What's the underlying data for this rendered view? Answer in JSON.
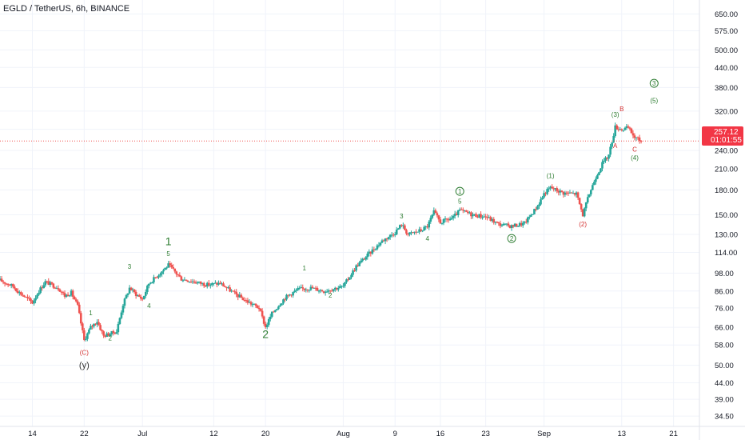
{
  "chart_data": {
    "type": "candlestick",
    "title": "EGLD / TetherUS, 6h, BINANCE",
    "y_scale": "log",
    "ylim": [
      32,
      720
    ],
    "y_ticks": [
      34.5,
      39,
      44,
      50,
      58,
      66,
      76,
      86,
      98,
      114,
      130,
      150,
      180,
      210,
      240,
      280,
      320,
      380,
      440,
      500,
      575,
      650
    ],
    "x_range": [
      "2021-06-09",
      "2021-09-25"
    ],
    "x_ticks": [
      {
        "label": "14",
        "date": "2021-06-14"
      },
      {
        "label": "22",
        "date": "2021-06-22"
      },
      {
        "label": "Jul",
        "date": "2021-07-01"
      },
      {
        "label": "12",
        "date": "2021-07-12"
      },
      {
        "label": "20",
        "date": "2021-07-20"
      },
      {
        "label": "Aug",
        "date": "2021-08-01"
      },
      {
        "label": "9",
        "date": "2021-08-09"
      },
      {
        "label": "16",
        "date": "2021-08-16"
      },
      {
        "label": "23",
        "date": "2021-08-23"
      },
      {
        "label": "Sep",
        "date": "2021-09-01"
      },
      {
        "label": "13",
        "date": "2021-09-13"
      },
      {
        "label": "21",
        "date": "2021-09-21"
      }
    ],
    "current_price": "257.12",
    "countdown": "01:01:55",
    "price_path": [
      [
        "2021-06-09",
        93
      ],
      [
        "2021-06-11",
        89
      ],
      [
        "2021-06-12",
        85
      ],
      [
        "2021-06-14",
        79
      ],
      [
        "2021-06-15",
        86
      ],
      [
        "2021-06-16",
        92
      ],
      [
        "2021-06-18",
        88
      ],
      [
        "2021-06-19",
        83
      ],
      [
        "2021-06-20",
        85
      ],
      [
        "2021-06-21",
        77
      ],
      [
        "2021-06-22",
        60
      ],
      [
        "2021-06-23",
        66
      ],
      [
        "2021-06-24",
        69
      ],
      [
        "2021-06-25",
        62
      ],
      [
        "2021-06-27",
        64
      ],
      [
        "2021-06-28",
        78
      ],
      [
        "2021-06-29",
        88
      ],
      [
        "2021-06-30",
        84
      ],
      [
        "2021-07-01",
        81
      ],
      [
        "2021-07-02",
        91
      ],
      [
        "2021-07-03",
        95
      ],
      [
        "2021-07-05",
        104
      ],
      [
        "2021-07-06",
        99
      ],
      [
        "2021-07-07",
        94
      ],
      [
        "2021-07-09",
        92
      ],
      [
        "2021-07-11",
        90
      ],
      [
        "2021-07-13",
        91
      ],
      [
        "2021-07-15",
        85
      ],
      [
        "2021-07-17",
        80
      ],
      [
        "2021-07-19",
        76
      ],
      [
        "2021-07-20",
        66
      ],
      [
        "2021-07-21",
        73
      ],
      [
        "2021-07-23",
        82
      ],
      [
        "2021-07-25",
        87
      ],
      [
        "2021-07-27",
        88
      ],
      [
        "2021-07-29",
        86
      ],
      [
        "2021-07-30",
        87
      ],
      [
        "2021-08-01",
        89
      ],
      [
        "2021-08-03",
        103
      ],
      [
        "2021-08-05",
        113
      ],
      [
        "2021-08-07",
        124
      ],
      [
        "2021-08-09",
        132
      ],
      [
        "2021-08-10",
        140
      ],
      [
        "2021-08-11",
        130
      ],
      [
        "2021-08-13",
        134
      ],
      [
        "2021-08-14",
        138
      ],
      [
        "2021-08-15",
        153
      ],
      [
        "2021-08-16",
        142
      ],
      [
        "2021-08-18",
        147
      ],
      [
        "2021-08-19",
        155
      ],
      [
        "2021-08-21",
        150
      ],
      [
        "2021-08-23",
        148
      ],
      [
        "2021-08-25",
        140
      ],
      [
        "2021-08-27",
        138
      ],
      [
        "2021-08-29",
        141
      ],
      [
        "2021-08-31",
        160
      ],
      [
        "2021-09-01",
        175
      ],
      [
        "2021-09-02",
        183
      ],
      [
        "2021-09-04",
        176
      ],
      [
        "2021-09-06",
        175
      ],
      [
        "2021-09-07",
        150
      ],
      [
        "2021-09-08",
        175
      ],
      [
        "2021-09-09",
        198
      ],
      [
        "2021-09-10",
        218
      ],
      [
        "2021-09-11",
        232
      ],
      [
        "2021-09-12",
        285
      ],
      [
        "2021-09-13",
        280
      ],
      [
        "2021-09-14",
        283
      ],
      [
        "2021-09-15",
        264
      ],
      [
        "2021-09-16",
        257
      ]
    ],
    "wave_labels": [
      {
        "text": "(C)",
        "date": "2021-06-22",
        "price": 54,
        "color": "#d32f2f"
      },
      {
        "text": "(y)",
        "date": "2021-06-22",
        "price": 49,
        "color": "#333333"
      },
      {
        "text": "1",
        "date": "2021-06-23",
        "price": 72,
        "color": "#2e7d32"
      },
      {
        "text": "2",
        "date": "2021-06-26",
        "price": 60,
        "color": "#2e7d32"
      },
      {
        "text": "3",
        "date": "2021-06-29",
        "price": 101,
        "color": "#2e7d32"
      },
      {
        "text": "4",
        "date": "2021-07-02",
        "price": 76,
        "color": "#2e7d32"
      },
      {
        "text": "1",
        "date": "2021-07-05",
        "price": 120,
        "color": "#2e7d32"
      },
      {
        "text": "5",
        "date": "2021-07-05",
        "price": 111,
        "color": "#2e7d32"
      },
      {
        "text": "2",
        "date": "2021-07-20",
        "price": 61,
        "color": "#2e7d32"
      },
      {
        "text": "1",
        "date": "2021-07-26",
        "price": 100,
        "color": "#2e7d32"
      },
      {
        "text": "2",
        "date": "2021-07-30",
        "price": 82,
        "color": "#2e7d32"
      },
      {
        "text": "3",
        "date": "2021-08-10",
        "price": 146,
        "color": "#2e7d32"
      },
      {
        "text": "4",
        "date": "2021-08-14",
        "price": 124,
        "color": "#2e7d32"
      },
      {
        "text": "1",
        "date": "2021-08-19",
        "price": 175,
        "color": "#2e7d32",
        "circled": true
      },
      {
        "text": "5",
        "date": "2021-08-19",
        "price": 163,
        "color": "#2e7d32"
      },
      {
        "text": "2",
        "date": "2021-08-27",
        "price": 124,
        "color": "#2e7d32",
        "circled": true
      },
      {
        "text": "(1)",
        "date": "2021-09-02",
        "price": 196,
        "color": "#2e7d32"
      },
      {
        "text": "(2)",
        "date": "2021-09-07",
        "price": 138,
        "color": "#d32f2f"
      },
      {
        "text": "(3)",
        "date": "2021-09-12",
        "price": 307,
        "color": "#2e7d32"
      },
      {
        "text": "A",
        "date": "2021-09-12",
        "price": 244,
        "color": "#d32f2f"
      },
      {
        "text": "B",
        "date": "2021-09-13",
        "price": 320,
        "color": "#d32f2f"
      },
      {
        "text": "C",
        "date": "2021-09-15",
        "price": 238,
        "color": "#d32f2f"
      },
      {
        "text": "(4)",
        "date": "2021-09-15",
        "price": 224,
        "color": "#2e7d32"
      },
      {
        "text": "3",
        "date": "2021-09-18",
        "price": 385,
        "color": "#2e7d32",
        "circled": true
      },
      {
        "text": "(5)",
        "date": "2021-09-18",
        "price": 340,
        "color": "#2e7d32"
      }
    ]
  },
  "colors": {
    "up": "#26a69a",
    "down": "#ef5350",
    "price_label_bg": "#f23645",
    "grid": "#f0f3fa",
    "axis_text": "#131722"
  }
}
